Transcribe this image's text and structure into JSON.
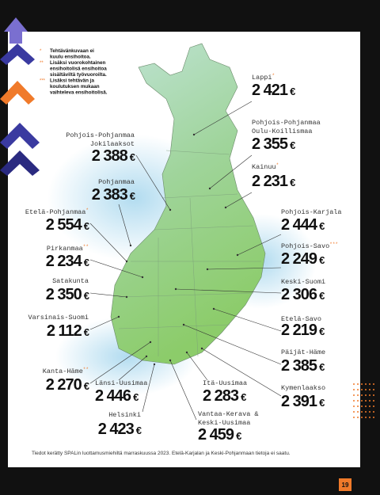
{
  "notes": [
    {
      "marker": "*",
      "lines": [
        "Tehtävänkuvaan ei",
        "kuulu ensihoitoa."
      ]
    },
    {
      "marker": "**",
      "lines": [
        "Lisäksi vuorokohtainen",
        "ensihoitolisä ensihoitoa",
        "sisältäviltä työvuoroilta."
      ]
    },
    {
      "marker": "***",
      "lines": [
        "Lisäksi tehtävän ja",
        "koulutuksen mukaan",
        "vaihteleva ensihoitolisä."
      ]
    }
  ],
  "currency": "€",
  "regions": [
    {
      "name": [
        "Lappi"
      ],
      "marker": "*",
      "amount": "2 421"
    },
    {
      "name": [
        "Pohjois-Pohjanmaa",
        "Oulu-Koillismaa"
      ],
      "amount": "2 355"
    },
    {
      "name": [
        "Kainuu"
      ],
      "marker": "*",
      "amount": "2 231"
    },
    {
      "name": [
        "Pohjois-Karjala"
      ],
      "amount": "2 444"
    },
    {
      "name": [
        "Pohjois-Savo"
      ],
      "marker": "***",
      "amount": "2 249"
    },
    {
      "name": [
        "Keski-Suomi"
      ],
      "amount": "2 306"
    },
    {
      "name": [
        "Etelä-Savo"
      ],
      "amount": "2 219"
    },
    {
      "name": [
        "Päijät-Häme"
      ],
      "amount": "2 385"
    },
    {
      "name": [
        "Kymenlaakso"
      ],
      "amount": "2 391"
    },
    {
      "name": [
        "Vantaa-Kerava &",
        "Keski-Uusimaa"
      ],
      "amount": "2 459"
    },
    {
      "name": [
        "Itä-Uusimaa"
      ],
      "amount": "2 283"
    },
    {
      "name": [
        "Helsinki"
      ],
      "amount": "2 423"
    },
    {
      "name": [
        "Länsi-Uusimaa"
      ],
      "amount": "2 446"
    },
    {
      "name": [
        "Kanta-Häme"
      ],
      "marker": "**",
      "amount": "2 270"
    },
    {
      "name": [
        "Varsinais-Suomi"
      ],
      "amount": "2 112",
      "color": "#e2212b"
    },
    {
      "name": [
        "Satakunta"
      ],
      "amount": "2 350"
    },
    {
      "name": [
        "Pirkanmaa"
      ],
      "marker": "**",
      "amount": "2 234"
    },
    {
      "name": [
        "Etelä-Pohjanmaa"
      ],
      "marker": "*",
      "amount": "2 554",
      "color": "#5cb947"
    },
    {
      "name": [
        "Pohjanmaa"
      ],
      "amount": "2 383"
    },
    {
      "name": [
        "Pohjois-Pohjanmaa",
        "Jokilaaksot"
      ],
      "amount": "2 388"
    }
  ],
  "footnote": "Tiedot kerätty SPALin luottamusmiehiltä marraskuussa 2023. Etelä-Karjalan ja Keski-Pohjanmaan tietoja ei saatu.",
  "page_number": "19"
}
